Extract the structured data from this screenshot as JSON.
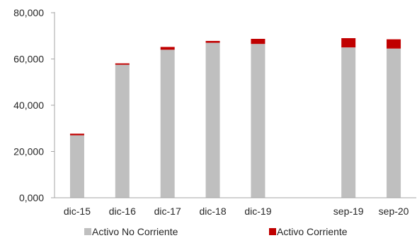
{
  "chart_data": {
    "type": "bar",
    "stacked": true,
    "categories": [
      "dic-15",
      "dic-16",
      "dic-17",
      "dic-18",
      "dic-19",
      "",
      "sep-19",
      "sep-20"
    ],
    "series": [
      {
        "name": "Activo No Corriente",
        "color": "#bfbfbf",
        "values": [
          27000,
          57500,
          64000,
          67000,
          66500,
          null,
          65000,
          64500
        ]
      },
      {
        "name": "Activo Corriente",
        "color": "#c00000",
        "values": [
          700,
          600,
          1200,
          800,
          2200,
          null,
          4000,
          4000
        ]
      }
    ],
    "ylim": [
      0,
      80000
    ],
    "yticks": [
      0,
      20000,
      40000,
      60000,
      80000
    ],
    "ytick_labels": [
      "0,000",
      "20,000",
      "40,000",
      "60,000",
      "80,000"
    ],
    "title": "",
    "xlabel": "",
    "ylabel": "",
    "grid": false,
    "legend_position": "bottom",
    "axis_color": "#a6a6a6"
  }
}
